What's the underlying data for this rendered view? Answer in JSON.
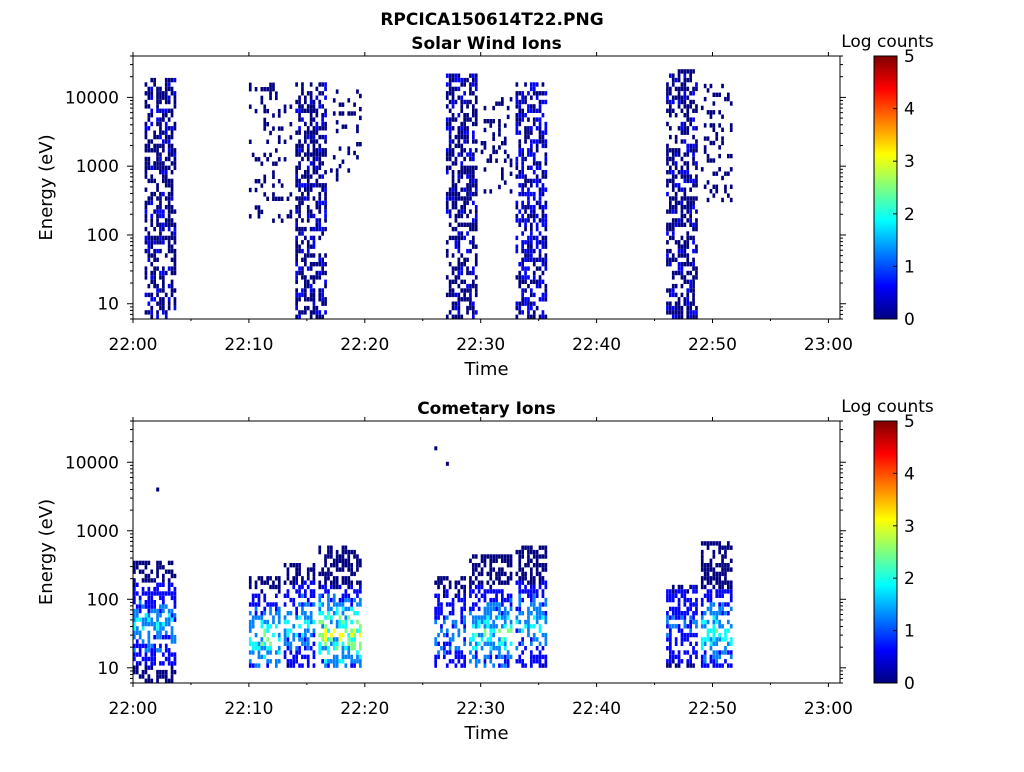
{
  "figure_title": "RPCICA150614T22.PNG",
  "colormap": [
    "#00007f",
    "#0000ff",
    "#007fff",
    "#00ffff",
    "#7fff7f",
    "#ffff00",
    "#ff7f00",
    "#ff0000",
    "#7f0000"
  ],
  "chart_data": [
    {
      "type": "heatmap",
      "title": "Solar Wind Ions",
      "xlabel": "Time",
      "ylabel": "Energy (eV)",
      "yscale": "log",
      "ylim": [
        6,
        40000
      ],
      "xlim": [
        "22:00",
        "23:01"
      ],
      "x_ticks": [
        "22:00",
        "22:10",
        "22:20",
        "22:30",
        "22:40",
        "22:50",
        "23:00"
      ],
      "y_ticks": [
        "10",
        "100",
        "1000",
        "10000"
      ],
      "colorbar": {
        "label": "Log counts",
        "range": [
          0,
          5
        ],
        "ticks": [
          "0",
          "1",
          "2",
          "3",
          "4",
          "5"
        ]
      },
      "bursts": [
        {
          "start": "22:01",
          "end": "22:03",
          "emin": 6,
          "emax": 17000,
          "level": 0.3
        },
        {
          "start": "22:10",
          "end": "22:13",
          "emin": 150,
          "emax": 15000,
          "level": 0.1,
          "sparse": true
        },
        {
          "start": "22:14",
          "end": "22:16",
          "emin": 6,
          "emax": 15000,
          "level": 0.3
        },
        {
          "start": "22:17",
          "end": "22:19",
          "emin": 600,
          "emax": 12000,
          "level": 0.1,
          "sparse": true
        },
        {
          "start": "22:27",
          "end": "22:29",
          "emin": 6,
          "emax": 22000,
          "level": 0.3
        },
        {
          "start": "22:30",
          "end": "22:32",
          "emin": 400,
          "emax": 10000,
          "level": 0.1,
          "sparse": true
        },
        {
          "start": "22:33",
          "end": "22:35",
          "emin": 6,
          "emax": 15000,
          "level": 0.4
        },
        {
          "start": "22:46",
          "end": "22:48",
          "emin": 6,
          "emax": 24000,
          "level": 0.3
        },
        {
          "start": "22:49",
          "end": "22:51",
          "emin": 300,
          "emax": 15000,
          "level": 0.1,
          "sparse": true
        }
      ]
    },
    {
      "type": "heatmap",
      "title": "Cometary Ions",
      "xlabel": "Time",
      "ylabel": "Energy (eV)",
      "yscale": "log",
      "ylim": [
        6,
        40000
      ],
      "xlim": [
        "22:00",
        "23:01"
      ],
      "x_ticks": [
        "22:00",
        "22:10",
        "22:20",
        "22:30",
        "22:40",
        "22:50",
        "23:00"
      ],
      "y_ticks": [
        "10",
        "100",
        "1000",
        "10000"
      ],
      "colorbar": {
        "label": "Log counts",
        "range": [
          0,
          5
        ],
        "ticks": [
          "0",
          "1",
          "2",
          "3",
          "4",
          "5"
        ]
      },
      "bursts": [
        {
          "start": "22:00",
          "end": "22:03",
          "emin": 6,
          "emax": 350,
          "level": 1.5,
          "peak_energy": 40
        },
        {
          "start": "22:10",
          "end": "22:12",
          "emin": 10,
          "emax": 200,
          "level": 2.0,
          "peak_energy": 25
        },
        {
          "start": "22:13",
          "end": "22:15",
          "emin": 10,
          "emax": 300,
          "level": 1.6,
          "peak_energy": 40
        },
        {
          "start": "22:16",
          "end": "22:19",
          "emin": 10,
          "emax": 600,
          "level": 2.6,
          "peak_energy": 30
        },
        {
          "start": "22:26",
          "end": "22:28",
          "emin": 10,
          "emax": 200,
          "level": 1.2,
          "peak_energy": 30
        },
        {
          "start": "22:29",
          "end": "22:32",
          "emin": 10,
          "emax": 400,
          "level": 2.0,
          "peak_energy": 30
        },
        {
          "start": "22:33",
          "end": "22:35",
          "emin": 10,
          "emax": 600,
          "level": 1.6,
          "peak_energy": 40
        },
        {
          "start": "22:46",
          "end": "22:48",
          "emin": 10,
          "emax": 150,
          "level": 1.0,
          "peak_energy": 40
        },
        {
          "start": "22:49",
          "end": "22:51",
          "emin": 10,
          "emax": 700,
          "level": 1.8,
          "peak_energy": 30
        }
      ],
      "scattered_points": [
        {
          "time": "22:26",
          "energy": 16000
        },
        {
          "time": "22:27",
          "energy": 9500
        },
        {
          "time": "22:02",
          "energy": 4000
        }
      ]
    }
  ]
}
